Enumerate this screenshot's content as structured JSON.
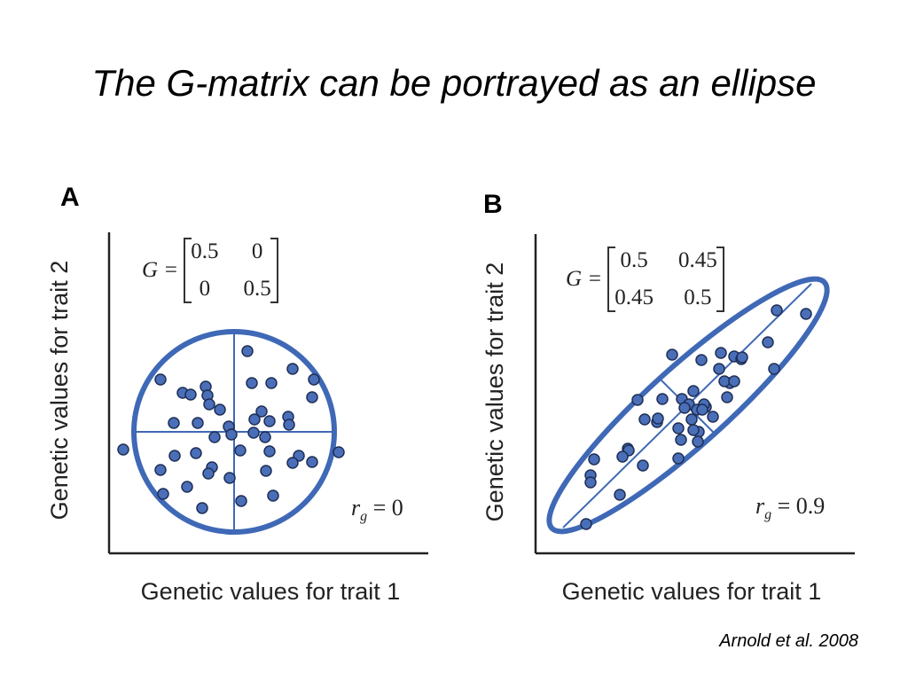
{
  "title": "The G-matrix can be portrayed as an ellipse",
  "citation": "Arnold et al. 2008",
  "colors": {
    "accent": "#3f69b6",
    "dot_fill": "#4a6fb8",
    "dot_stroke": "#1e2e55",
    "axis": "#222222"
  },
  "panels": [
    {
      "letter": "A",
      "matrix": {
        "lhs": "G =",
        "cells": [
          "0.5",
          "0",
          "0",
          "0.5"
        ]
      },
      "rg": {
        "symbol": "r",
        "sub": "g",
        "value": "= 0"
      },
      "xlabel": "Genetic values for trait 1",
      "ylabel": "Genetic values for trait 2"
    },
    {
      "letter": "B",
      "matrix": {
        "lhs": "G =",
        "cells": [
          "0.5",
          "0.45",
          "0.45",
          "0.5"
        ]
      },
      "rg": {
        "symbol": "r",
        "sub": "g",
        "value": "= 0.9"
      },
      "xlabel": "Genetic values for trait 1",
      "ylabel": "Genetic values for trait 2"
    }
  ]
}
